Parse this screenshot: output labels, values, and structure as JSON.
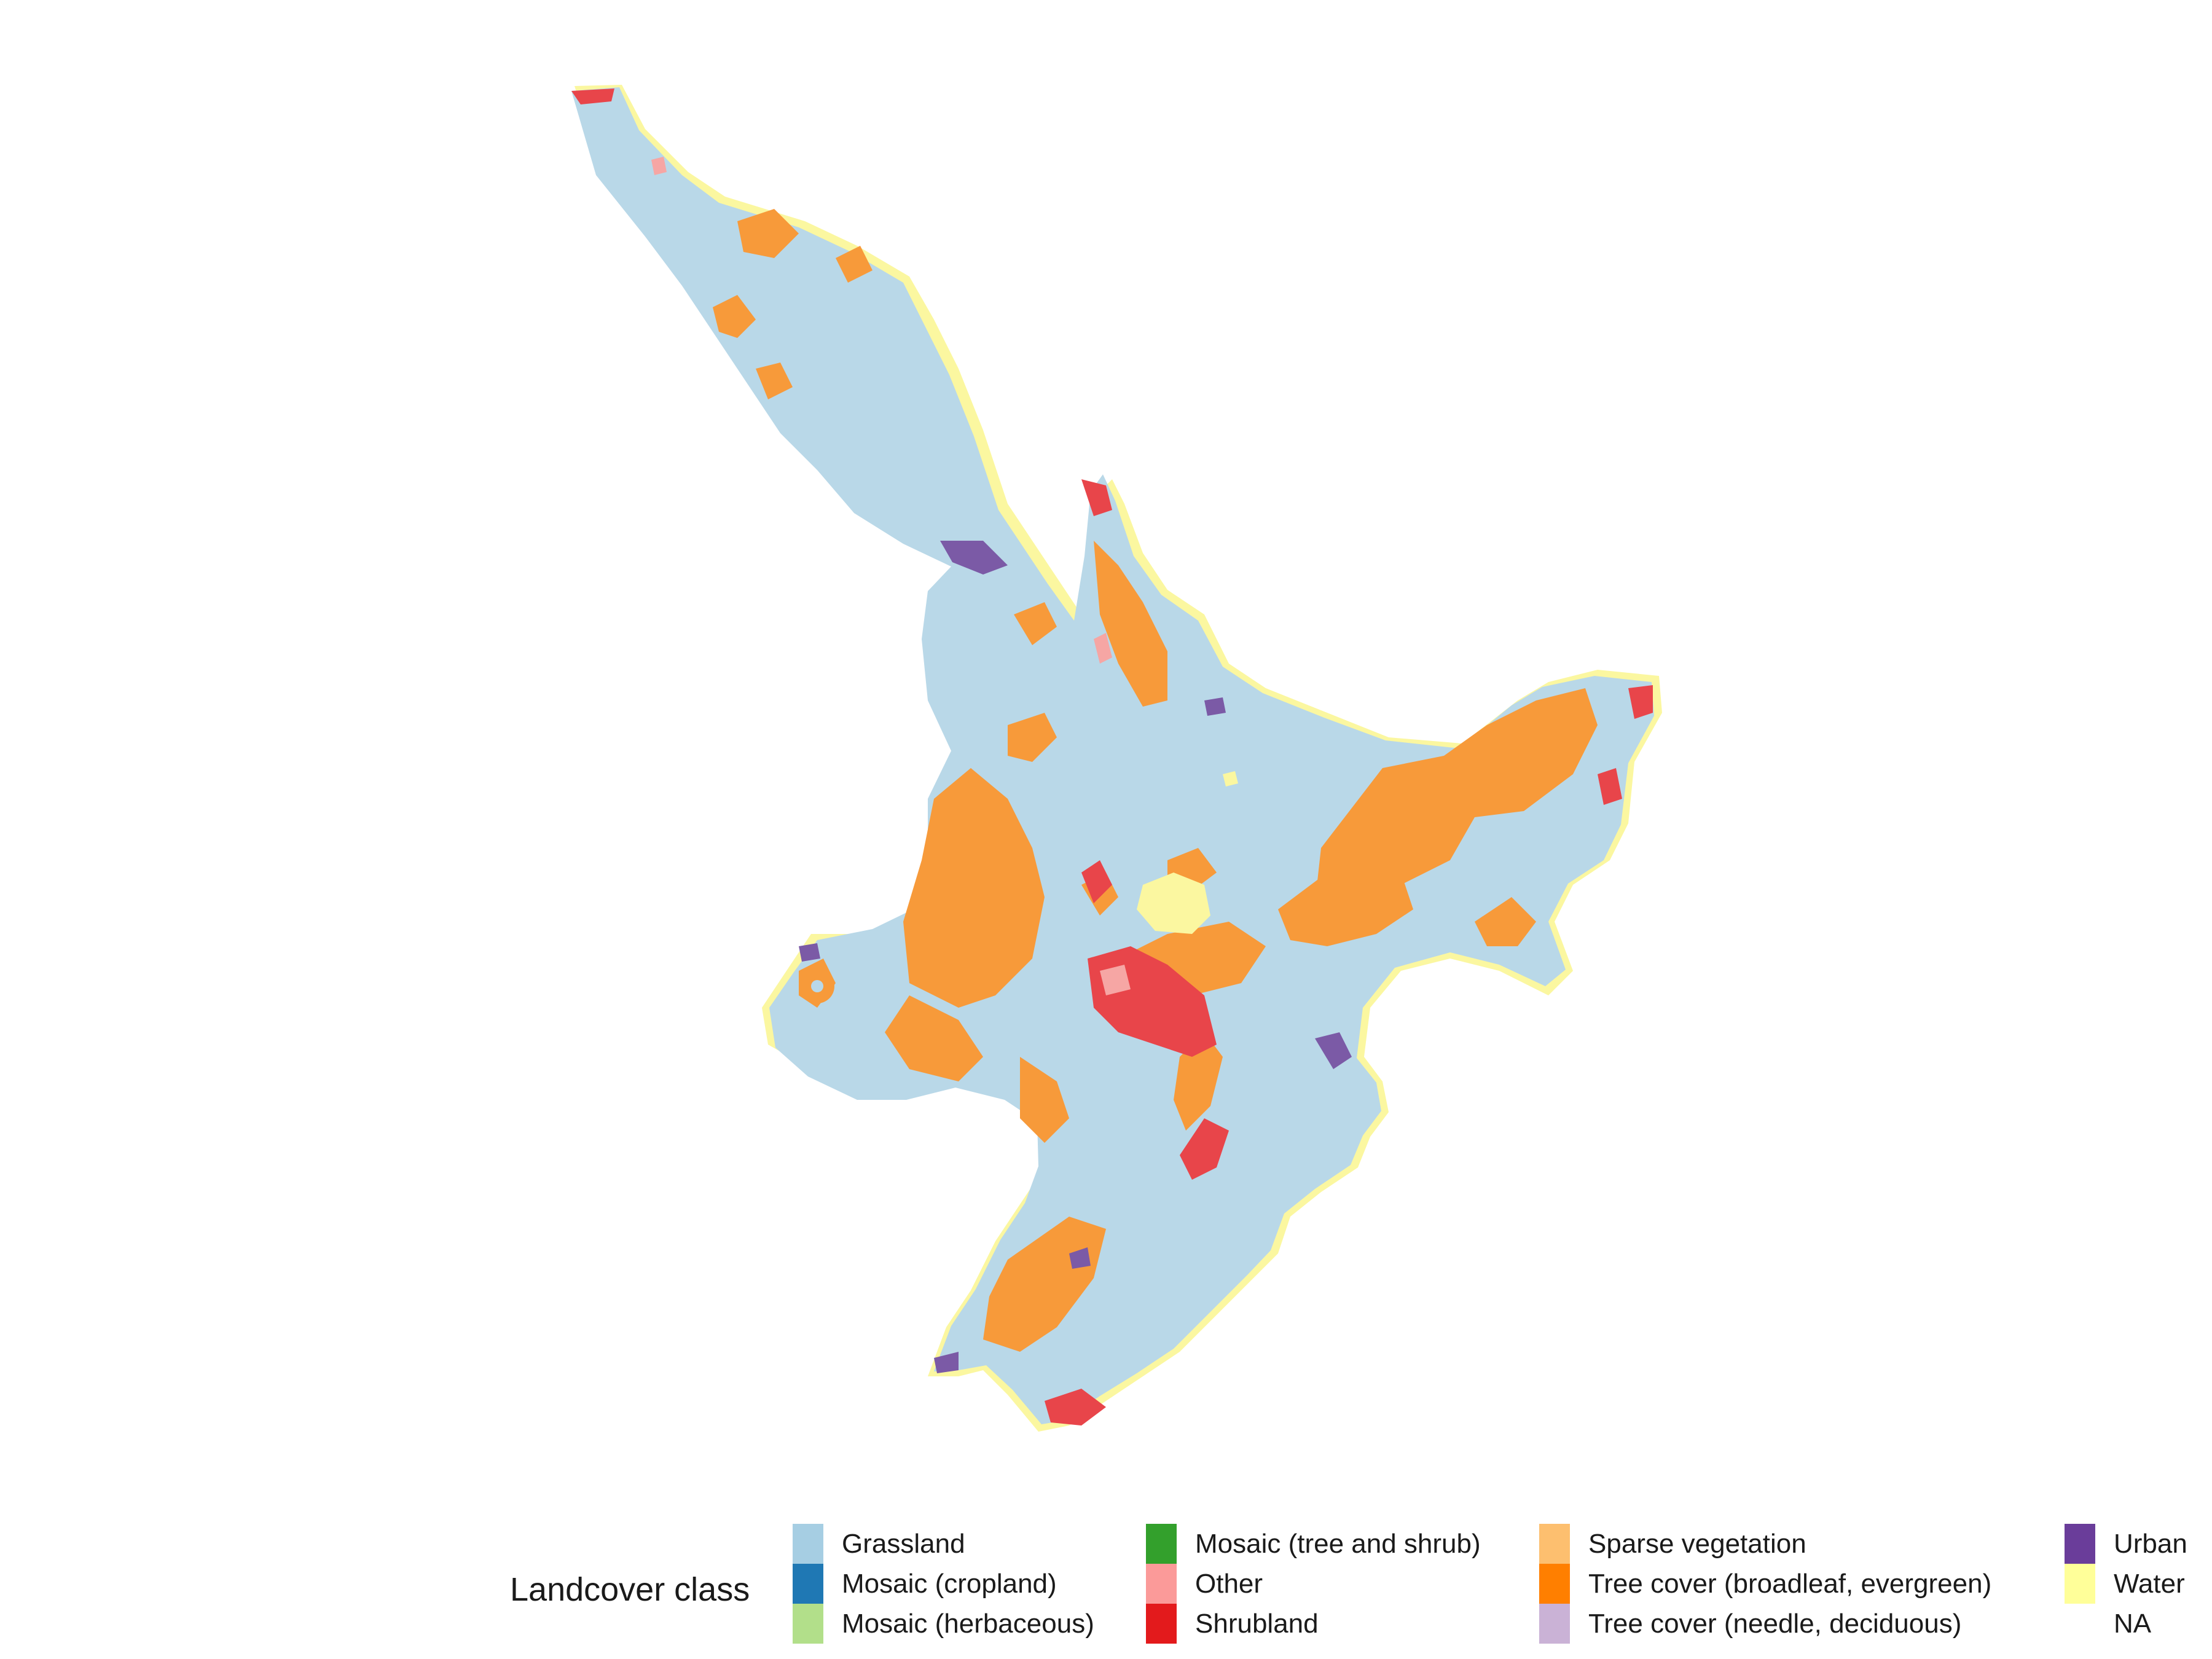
{
  "legend": {
    "title": "Landcover class",
    "items": [
      {
        "label": "Grassland",
        "color": "#a6cee3"
      },
      {
        "label": "Mosaic (cropland)",
        "color": "#1f78b4"
      },
      {
        "label": "Mosaic (herbaceous)",
        "color": "#b2df8a"
      },
      {
        "label": "Mosaic (tree and shrub)",
        "color": "#33a02c"
      },
      {
        "label": "Other",
        "color": "#fb9a99"
      },
      {
        "label": "Shrubland",
        "color": "#e31a1c"
      },
      {
        "label": "Sparse vegetation",
        "color": "#fdbf6f"
      },
      {
        "label": "Tree cover (broadleaf, evergreen)",
        "color": "#ff7f00"
      },
      {
        "label": "Tree cover (needle, deciduous)",
        "color": "#cab2d6"
      },
      {
        "label": "Urban",
        "color": "#6a3d9a"
      },
      {
        "label": "Water",
        "color": "#ffff99"
      },
      {
        "label": "NA",
        "color": "#ffffff"
      }
    ]
  },
  "map": {
    "land_color": "#b9d8e8",
    "forest_color": "#f79a3a",
    "shrub_color": "#e8454a",
    "urban_color": "#7b5aa6",
    "water_color": "#fbf7a0",
    "other_color": "#f6a6a4"
  }
}
